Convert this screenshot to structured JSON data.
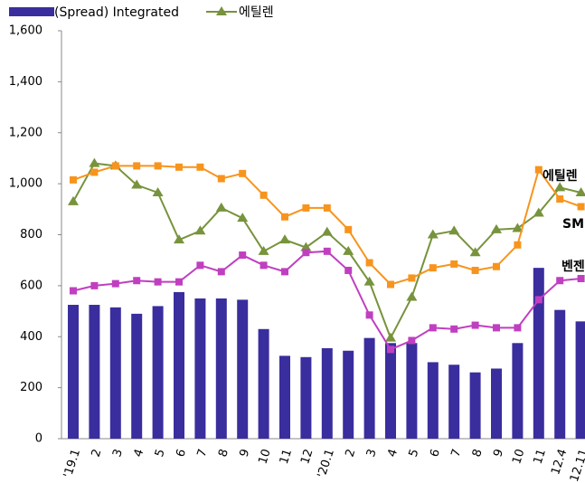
{
  "chart_data": {
    "type": "bar-line",
    "categories": [
      "'19.1",
      "2",
      "3",
      "4",
      "5",
      "6",
      "7",
      "8",
      "9",
      "10",
      "11",
      "12",
      "'20.1",
      "2",
      "3",
      "4",
      "5",
      "6",
      "7",
      "8",
      "9",
      "10",
      "11",
      "12.4",
      "12.11"
    ],
    "series": [
      {
        "name": "(Spread) Integrated",
        "type": "bar",
        "color": "#3a2d9e",
        "values": [
          525,
          525,
          515,
          490,
          520,
          575,
          550,
          550,
          545,
          430,
          325,
          320,
          355,
          345,
          395,
          375,
          375,
          300,
          290,
          260,
          275,
          375,
          670,
          505,
          460
        ]
      },
      {
        "name": "에틸렌",
        "type": "line",
        "marker": "triangle",
        "color": "#77933c",
        "values": [
          930,
          1080,
          1070,
          995,
          965,
          780,
          815,
          905,
          865,
          735,
          780,
          750,
          810,
          735,
          615,
          395,
          555,
          800,
          815,
          730,
          820,
          825,
          885,
          985,
          965
        ]
      },
      {
        "name": "SM",
        "type": "line",
        "marker": "square",
        "color": "#f7941d",
        "values": [
          1015,
          1045,
          1070,
          1070,
          1070,
          1065,
          1065,
          1020,
          1040,
          955,
          870,
          905,
          905,
          820,
          690,
          605,
          630,
          670,
          685,
          660,
          675,
          760,
          1055,
          940,
          910
        ]
      },
      {
        "name": "벤젠",
        "type": "line",
        "marker": "square",
        "color": "#c03fc0",
        "values": [
          580,
          600,
          608,
          620,
          615,
          615,
          680,
          655,
          720,
          680,
          655,
          730,
          735,
          660,
          485,
          350,
          385,
          435,
          430,
          445,
          435,
          435,
          545,
          620,
          628
        ]
      }
    ],
    "ylim": [
      0,
      1600
    ],
    "yticks": [
      0,
      200,
      400,
      600,
      800,
      {
        "value": 1000,
        "label": "1,000"
      },
      {
        "value": 1200,
        "label": "1,200"
      },
      {
        "value": 1400,
        "label": "1,400"
      },
      {
        "value": 1600,
        "label": "1,600"
      }
    ]
  }
}
